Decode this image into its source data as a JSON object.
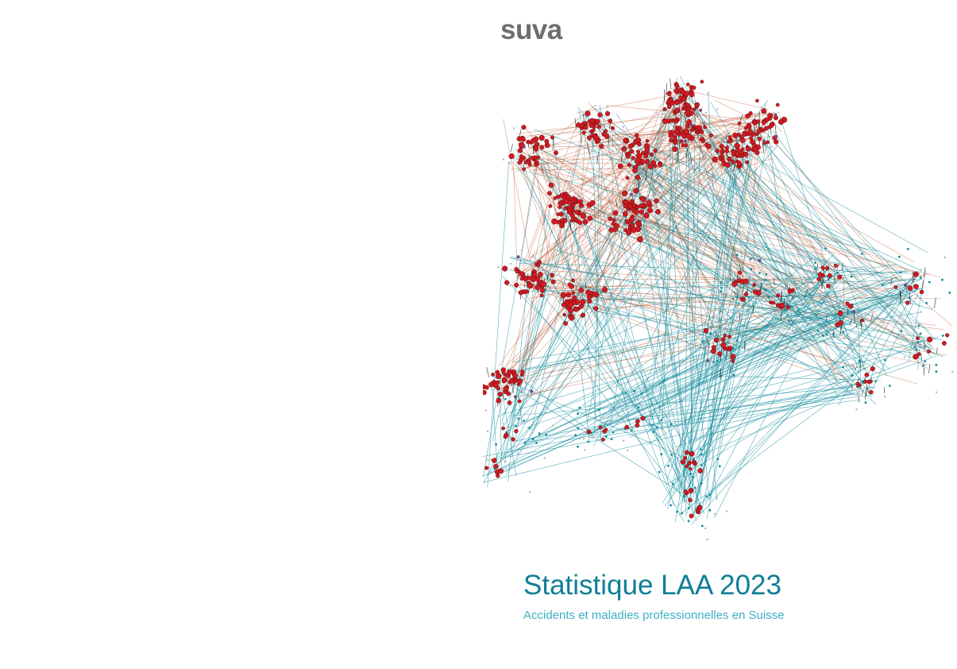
{
  "cover": {
    "brand": "suva",
    "title": "Statistique LAA 2023",
    "subtitle": "Accidents et maladies professionnelles en Suisse"
  },
  "illustration": {
    "kind": "network-map-of-switzerland",
    "colors": {
      "node_red": "#d01b22",
      "line_teal": "#0f8a9b",
      "line_rust": "#c0522a",
      "node_gray": "#b4b4b4",
      "node_purple": "#7b4a7f"
    }
  }
}
